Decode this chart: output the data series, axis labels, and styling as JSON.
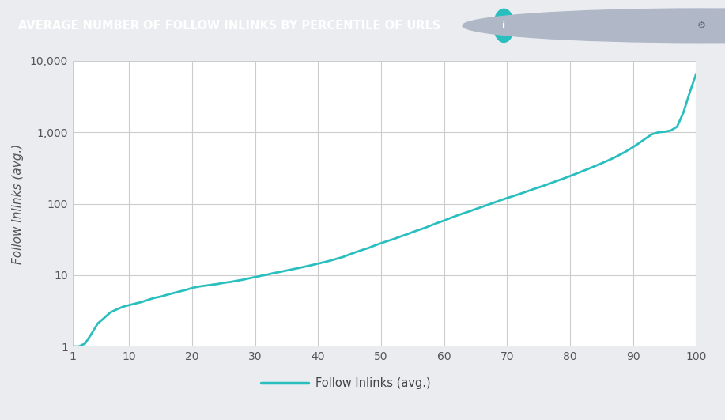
{
  "title": "AVERAGE NUMBER OF FOLLOW INLINKS BY PERCENTILE OF URLS",
  "title_bg": "#2d3748",
  "title_color": "#ffffff",
  "title_fontsize": 10.5,
  "ylabel": "Follow Inlinks (avg.)",
  "ylabel_fontsize": 11,
  "legend_label": "Follow Inlinks (avg.)",
  "legend_color": "#2abfbf",
  "line_color": "#2abfbf",
  "line_width": 2,
  "plot_bg": "#ffffff",
  "grid_color": "#cccccc",
  "outer_bg": "#eaecf0",
  "x_data": [
    1,
    2,
    3,
    4,
    5,
    6,
    7,
    8,
    9,
    10,
    11,
    12,
    13,
    14,
    15,
    16,
    17,
    18,
    19,
    20,
    21,
    22,
    23,
    24,
    25,
    26,
    27,
    28,
    29,
    30,
    31,
    32,
    33,
    34,
    35,
    36,
    37,
    38,
    39,
    40,
    41,
    42,
    43,
    44,
    45,
    46,
    47,
    48,
    49,
    50,
    51,
    52,
    53,
    54,
    55,
    56,
    57,
    58,
    59,
    60,
    61,
    62,
    63,
    64,
    65,
    66,
    67,
    68,
    69,
    70,
    71,
    72,
    73,
    74,
    75,
    76,
    77,
    78,
    79,
    80,
    81,
    82,
    83,
    84,
    85,
    86,
    87,
    88,
    89,
    90,
    91,
    92,
    93,
    94,
    95,
    96,
    97,
    98,
    99,
    100
  ],
  "y_data": [
    1.0,
    1.0,
    1.1,
    1.5,
    2.1,
    2.5,
    3.0,
    3.3,
    3.6,
    3.8,
    4.0,
    4.2,
    4.5,
    4.8,
    5.0,
    5.3,
    5.6,
    5.9,
    6.2,
    6.6,
    6.9,
    7.1,
    7.3,
    7.5,
    7.8,
    8.0,
    8.3,
    8.6,
    9.0,
    9.4,
    9.8,
    10.2,
    10.7,
    11.1,
    11.6,
    12.1,
    12.6,
    13.2,
    13.8,
    14.5,
    15.2,
    16.0,
    17.0,
    18.0,
    19.5,
    21.0,
    22.5,
    24.0,
    26.0,
    28.0,
    30.0,
    32.0,
    34.5,
    37.0,
    40.0,
    43.0,
    46.0,
    50.0,
    54.0,
    58.0,
    63.0,
    68.0,
    73.0,
    78.0,
    84.0,
    90.0,
    97.0,
    104.0,
    112.0,
    120.0,
    128.0,
    137.0,
    147.0,
    158.0,
    169.0,
    181.0,
    195.0,
    210.0,
    226.0,
    244.0,
    264.0,
    286.0,
    310.0,
    338.0,
    368.0,
    402.0,
    442.0,
    490.0,
    548.0,
    620.0,
    710.0,
    820.0,
    940.0,
    1000.0,
    1020.0,
    1060.0,
    1200.0,
    1900.0,
    3600.0,
    6500.0
  ],
  "xlim": [
    1,
    100
  ],
  "ylim_log": [
    1,
    10000
  ],
  "xticks": [
    1,
    10,
    20,
    30,
    40,
    50,
    60,
    70,
    80,
    90,
    100
  ],
  "yticks_log": [
    1,
    10,
    100,
    1000,
    10000
  ],
  "ytick_labels": [
    "1",
    "10",
    "100",
    "1,000",
    "10,000"
  ]
}
